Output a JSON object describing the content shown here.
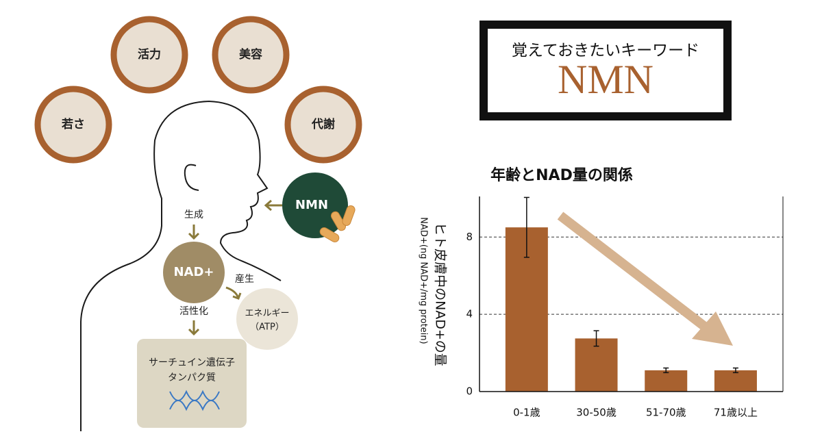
{
  "header": {
    "subtitle": "覚えておきたいキーワード",
    "title": "NMN"
  },
  "diagram": {
    "benefits": [
      "活力",
      "美容",
      "若さ",
      "代謝"
    ],
    "nmn": "NMN",
    "generate": "生成",
    "nad": "NAD+",
    "produce": "産生",
    "energy": [
      "エネルギー",
      "（ATP）"
    ],
    "activate": "活性化",
    "sirtuin": [
      "サーチュイン遺伝子",
      "タンパク質"
    ]
  },
  "chart_data": {
    "type": "bar",
    "title": "年齢とNAD量の関係",
    "y_label": "ヒト皮膚中のNAD+の量",
    "y_sublabel": "NAD+(ng NAD+/mg protein)",
    "categories": [
      "0-1歳",
      "30-50歳",
      "51-70歳",
      "71歳以上"
    ],
    "values": [
      8.5,
      2.75,
      1.1,
      1.1
    ],
    "errors": [
      1.55,
      0.4,
      0.12,
      0.12
    ],
    "color": "#a8612f",
    "ylim": [
      0,
      10.1
    ],
    "yticks": [
      0,
      4,
      8
    ],
    "grid": true
  }
}
